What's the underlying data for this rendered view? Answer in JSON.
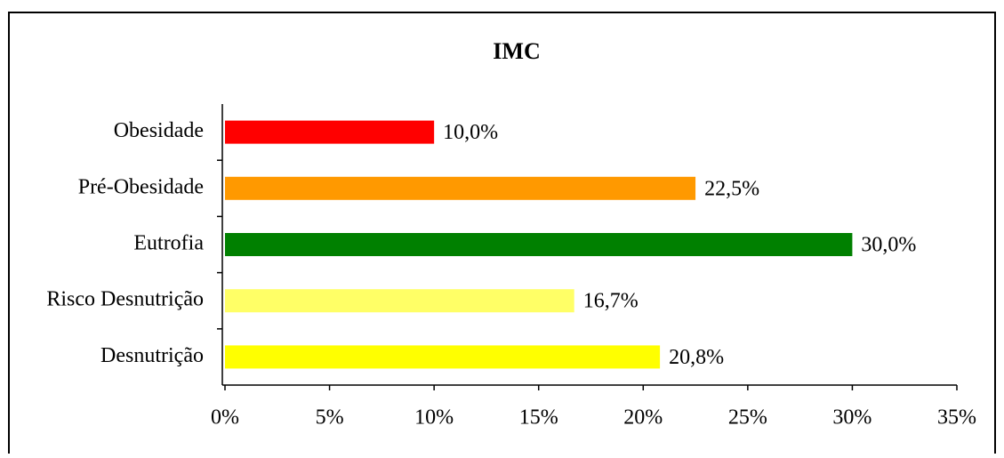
{
  "chart_data": {
    "type": "barh",
    "title": "IMC",
    "categories": [
      "Obesidade",
      "Pré-Obesidade",
      "Eutrofia",
      "Risco Desnutrição",
      "Desnutrição"
    ],
    "values": [
      10.0,
      22.5,
      30.0,
      16.7,
      20.8
    ],
    "value_labels": [
      "10,0%",
      "22,5%",
      "30,0%",
      "16,7%",
      "20,8%"
    ],
    "colors": [
      "#ff0000",
      "#ff9900",
      "#008000",
      "#ffff66",
      "#ffff00"
    ],
    "xlim": [
      0,
      35
    ],
    "xticks": [
      {
        "value": 0,
        "label": "0%"
      },
      {
        "value": 5,
        "label": "5%"
      },
      {
        "value": 10,
        "label": "10%"
      },
      {
        "value": 15,
        "label": "15%"
      },
      {
        "value": 20,
        "label": "20%"
      },
      {
        "value": 25,
        "label": "25%"
      },
      {
        "value": 30,
        "label": "30%"
      },
      {
        "value": 35,
        "label": "35%"
      }
    ],
    "grid": false
  }
}
